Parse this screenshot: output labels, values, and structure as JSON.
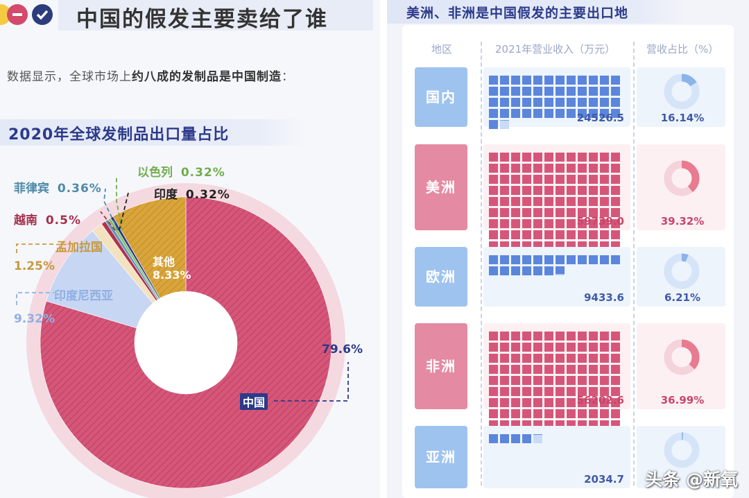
{
  "left": {
    "title": "中国的假发主要卖给了谁",
    "lead_pre": "数据显示，全球市场上",
    "lead_bold": "约八成的发制品是中国制造",
    "lead_post": "：",
    "chart_title": "2020年全球发制品出口量占比"
  },
  "right": {
    "title": "美洲、非洲是中国假发的主要出口地",
    "col_region": "地区",
    "col_revenue": "2021年营业收入（万元）",
    "col_share": "营收占比（%）"
  },
  "watermark": "头条 @新氧",
  "colors": {
    "pink": "#d6567a",
    "blue": "#5b86dc",
    "navy": "#2c3a8a",
    "gold": "#d9a53a",
    "light_blue": "#b9cdf0"
  },
  "chart_data": [
    {
      "type": "pie",
      "title": "2020年全球发制品出口量占比",
      "slices": [
        {
          "label": "中国",
          "value": 79.6,
          "value_label": "79.6%",
          "color": "#d6567a"
        },
        {
          "label": "印度尼西亚",
          "value": 9.32,
          "value_label": "9.32%",
          "color": "#c7d6f3"
        },
        {
          "label": "孟加拉国",
          "value": 1.25,
          "value_label": "1.25%",
          "color": "#f3e2bf"
        },
        {
          "label": "越南",
          "value": 0.5,
          "value_label": "0.5%",
          "color": "#b0334f"
        },
        {
          "label": "菲律宾",
          "value": 0.36,
          "value_label": "0.36%",
          "color": "#5e9ab8"
        },
        {
          "label": "以色列",
          "value": 0.32,
          "value_label": "0.32%",
          "color": "#8cbf6a"
        },
        {
          "label": "印度",
          "value": 0.32,
          "value_label": "0.32%",
          "color": "#2c3a8a"
        },
        {
          "label": "其他",
          "value": 8.33,
          "value_label": "8.33%",
          "color": "#d9a53a"
        }
      ]
    },
    {
      "type": "table",
      "title": "美洲、非洲是中国假发的主要出口地",
      "columns": [
        "地区",
        "2021年营业收入（万元）",
        "营收占比（%）"
      ],
      "rows": [
        {
          "region": "国内",
          "revenue": 24526.5,
          "revenue_label": "24526.5",
          "share": 16.14,
          "share_label": "16.14%",
          "theme": "blue"
        },
        {
          "region": "美洲",
          "revenue": 59739.0,
          "revenue_label": "59739.0",
          "share": 39.32,
          "share_label": "39.32%",
          "theme": "pink"
        },
        {
          "region": "欧洲",
          "revenue": 9433.6,
          "revenue_label": "9433.6",
          "share": 6.21,
          "share_label": "6.21%",
          "theme": "blue"
        },
        {
          "region": "非洲",
          "revenue": 56202.6,
          "revenue_label": "56202.6",
          "share": 36.99,
          "share_label": "36.99%",
          "theme": "pink"
        },
        {
          "region": "亚洲",
          "revenue": 2034.7,
          "revenue_label": "2034.7",
          "share": 1.34,
          "share_label": "",
          "theme": "blue"
        }
      ]
    }
  ]
}
